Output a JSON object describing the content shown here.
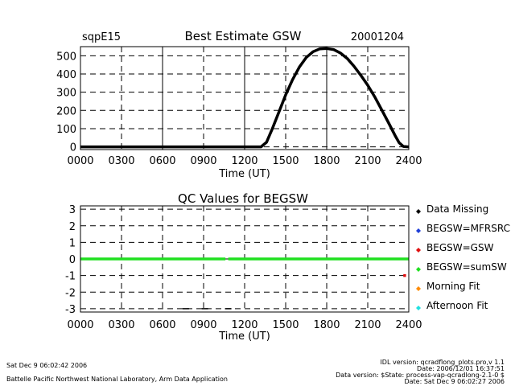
{
  "header": {
    "site": "sqpE15",
    "title": "Best Estimate GSW",
    "date": "20001204"
  },
  "chart_data": [
    {
      "type": "line",
      "title": "Best Estimate GSW",
      "xlabel": "Time (UT)",
      "ylabel": "",
      "xlim": [
        0,
        2400
      ],
      "ylim": [
        -15,
        550
      ],
      "x_ticks": [
        "0000",
        "0300",
        "0600",
        "0900",
        "1200",
        "1500",
        "1800",
        "2100",
        "2400"
      ],
      "y_ticks": [
        "0",
        "100",
        "200",
        "300",
        "400",
        "500"
      ],
      "grid": true,
      "series": [
        {
          "color": "#000000",
          "x": [
            0,
            200,
            400,
            600,
            800,
            1000,
            1200,
            1320,
            1360,
            1400,
            1450,
            1500,
            1550,
            1600,
            1650,
            1700,
            1750,
            1800,
            1850,
            1900,
            1950,
            2000,
            2050,
            2100,
            2150,
            2200,
            2250,
            2300,
            2330,
            2360,
            2400
          ],
          "y": [
            0,
            0,
            0,
            0,
            0,
            0,
            0,
            0,
            25,
            95,
            190,
            285,
            368,
            438,
            490,
            522,
            538,
            540,
            534,
            515,
            485,
            442,
            392,
            338,
            276,
            206,
            135,
            62,
            22,
            2,
            0
          ]
        }
      ]
    },
    {
      "type": "scatter",
      "title": "QC Values for BEGSW",
      "xlabel": "Time (UT)",
      "ylabel": "",
      "xlim": [
        0,
        2400
      ],
      "ylim": [
        -3.2,
        3.2
      ],
      "x_ticks": [
        "0000",
        "0300",
        "0600",
        "0900",
        "1200",
        "1500",
        "1800",
        "2100",
        "2400"
      ],
      "y_ticks": [
        "3",
        "2",
        "1",
        "0",
        "-1",
        "-2",
        "-3"
      ],
      "grid": true,
      "legend_placement": "right",
      "series": [
        {
          "name": "Data Missing",
          "color": "#000000"
        },
        {
          "name": "BEGSW=MFRSRC",
          "color": "#1f3fd8"
        },
        {
          "name": "BEGSW=GSW",
          "color": "#e01010"
        },
        {
          "name": "BEGSW=sumSW",
          "color": "#20e020"
        },
        {
          "name": "Morning Fit",
          "color": "#ff8c00"
        },
        {
          "name": "Afternoon Fit",
          "color": "#20e0e0"
        }
      ],
      "points": {
        "sumSW_value": 0,
        "sumSW_gaps": [
          1060,
          1080
        ],
        "gsw": {
          "x": [
            2360,
            2380
          ],
          "y": -1
        },
        "missing": {
          "x": [
            770,
            910,
            1080
          ],
          "y": -3
        }
      }
    }
  ],
  "footer": {
    "timestamp": "Sat Dec  9 06:02:42 2006",
    "org": "Battelle Pacific Northwest National Laboratory, Arm Data Application",
    "idl_version": "IDL version: qcradflong_plots.pro,v 1.1",
    "idl_date": "Date: 2006/12/01 16:37:51",
    "data_version": "Data version: $State: process-vap-qcradlong-2.1-0 $",
    "run_date": "Date: Sat Dec  9 06:02:27 2006"
  }
}
